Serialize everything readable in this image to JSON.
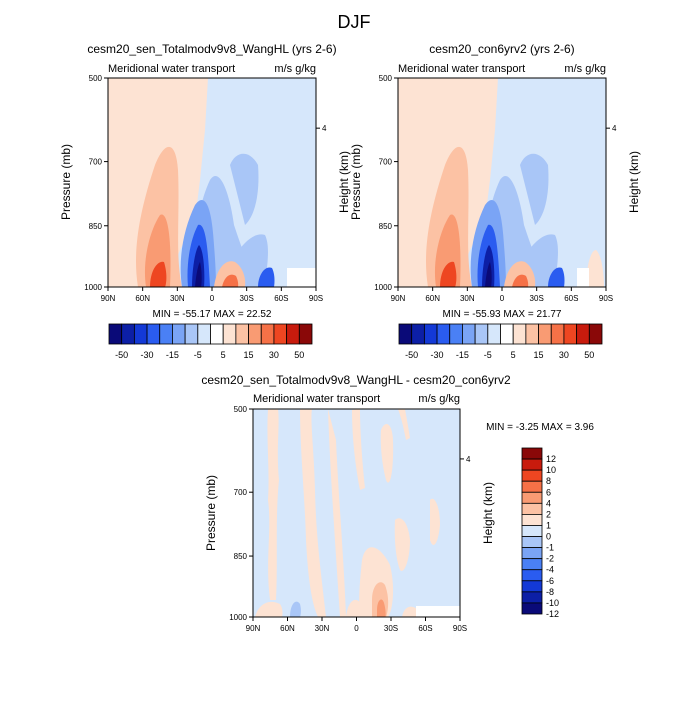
{
  "page": {
    "title": "DJF"
  },
  "colors": {
    "field_positive_pale": "#fde3d3",
    "field_negative_pale": "#d6e7fb",
    "colorbar_top": [
      "#0a0a78",
      "#0c1fa6",
      "#1339d6",
      "#2a5cf0",
      "#4a80f5",
      "#7aa4f5",
      "#a9c6f7",
      "#d6e7fb",
      "#ffffff",
      "#fde3d3",
      "#fcc2a4",
      "#f99b73",
      "#f67147",
      "#ee4621",
      "#c81b0d",
      "#8a0808"
    ],
    "colorbar_diff": [
      "#0a0a78",
      "#0c1fa6",
      "#1339d6",
      "#2a5cf0",
      "#4a80f5",
      "#7aa4f5",
      "#a9c6f7",
      "#d6e7fb",
      "#fde3d3",
      "#fcc2a4",
      "#f99b73",
      "#f67147",
      "#ee4621",
      "#c81b0d",
      "#8a0808"
    ]
  },
  "chart_data": [
    {
      "type": "heatmap",
      "title": "cesm20_sen_Totalmodv9v8_WangHL (yrs 2-6)",
      "left_label": "Meridional water transport",
      "right_label": "m/s g/kg",
      "xlabel": "",
      "ylabel": "Pressure (mb)",
      "ylabel_right": "Height (km)",
      "x_ticks": [
        "90N",
        "60N",
        "30N",
        "0",
        "30S",
        "60S",
        "90S"
      ],
      "y_ticks": [
        "500",
        "700",
        "850",
        "1000"
      ],
      "y_right_ticks": [
        "4"
      ],
      "stats": "MIN = -55.17  MAX =  22.52",
      "colorbar_labels": [
        "-50",
        "-30",
        "-15",
        "-5",
        "5",
        "15",
        "30",
        "50"
      ]
    },
    {
      "type": "heatmap",
      "title": "cesm20_con6yrv2 (yrs 2-6)",
      "left_label": "Meridional water transport",
      "right_label": "m/s g/kg",
      "xlabel": "",
      "ylabel": "Pressure (mb)",
      "ylabel_right": "Height (km)",
      "x_ticks": [
        "90N",
        "60N",
        "30N",
        "0",
        "30S",
        "60S",
        "90S"
      ],
      "y_ticks": [
        "500",
        "700",
        "850",
        "1000"
      ],
      "y_right_ticks": [
        "4"
      ],
      "stats": "MIN = -55.93  MAX =  21.77",
      "colorbar_labels": [
        "-50",
        "-30",
        "-15",
        "-5",
        "5",
        "15",
        "30",
        "50"
      ]
    },
    {
      "type": "heatmap",
      "title": "cesm20_sen_Totalmodv9v8_WangHL - cesm20_con6yrv2",
      "left_label": "Meridional water transport",
      "right_label": "m/s g/kg",
      "xlabel": "",
      "ylabel": "Pressure (mb)",
      "ylabel_right": "Height (km)",
      "x_ticks": [
        "90N",
        "60N",
        "30N",
        "0",
        "30S",
        "60S",
        "90S"
      ],
      "y_ticks": [
        "500",
        "700",
        "850",
        "1000"
      ],
      "y_right_ticks": [
        "4"
      ],
      "stats": "MIN =  -3.25  MAX =   3.96",
      "colorbar_labels": [
        "12",
        "10",
        "8",
        "6",
        "4",
        "2",
        "1",
        "0",
        "-1",
        "-2",
        "-4",
        "-6",
        "-8",
        "-10",
        "-12"
      ]
    }
  ]
}
